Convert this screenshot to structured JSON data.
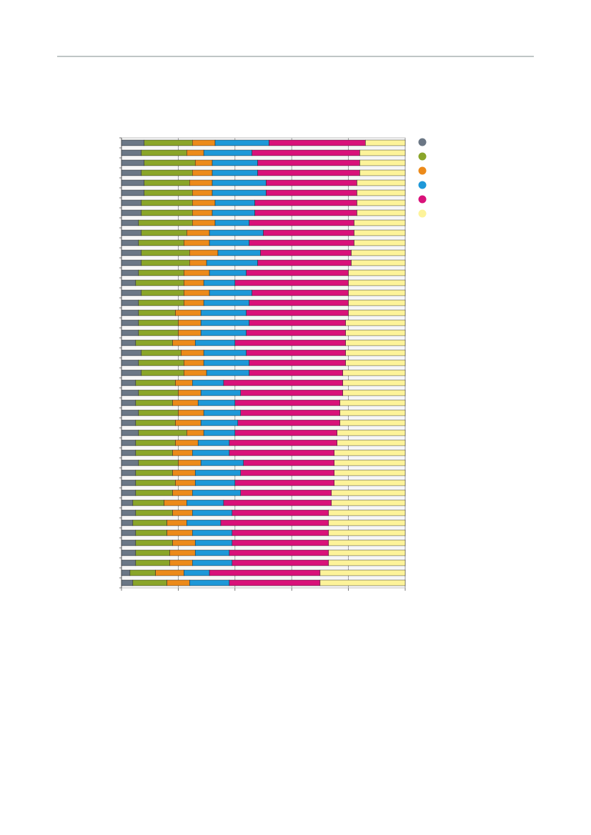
{
  "chart_data": {
    "type": "stacked-bar-horizontal",
    "categories": [
      null,
      null,
      null,
      null,
      null,
      null,
      null,
      null,
      null,
      null,
      null,
      null,
      null,
      null,
      null,
      null,
      null,
      null,
      null,
      null,
      null,
      null,
      null,
      null,
      null,
      null,
      null,
      null,
      null,
      null,
      null,
      null,
      null,
      null,
      null,
      null,
      null,
      null,
      null,
      null,
      null,
      null,
      null,
      null,
      null
    ],
    "xlim": [
      0,
      100
    ],
    "xticks": [
      0,
      20,
      40,
      60,
      80,
      100
    ],
    "grid": true,
    "series": [
      {
        "color": "#6b7785",
        "values": [
          8,
          7,
          8,
          7,
          8,
          8,
          7,
          7,
          6,
          7,
          6,
          7,
          7,
          6,
          5,
          7,
          6,
          6,
          6,
          6,
          5,
          7,
          6,
          7,
          5,
          6,
          5,
          6,
          5,
          6,
          5,
          5,
          6,
          5,
          5,
          5,
          4,
          5,
          4,
          5,
          5,
          5,
          5,
          3,
          4
        ]
      },
      {
        "color": "#8aa52a",
        "values": [
          17,
          16,
          18,
          18,
          16,
          17,
          18,
          18,
          19,
          16,
          16,
          17,
          17,
          16,
          17,
          15,
          16,
          13,
          14,
          14,
          13,
          14,
          16,
          15,
          14,
          14,
          13,
          14,
          14,
          17,
          14,
          13,
          14,
          13,
          14,
          13,
          11,
          13,
          12,
          11,
          13,
          12,
          12,
          9,
          12
        ]
      },
      {
        "color": "#ec8a1a",
        "values": [
          8,
          6,
          6,
          7,
          8,
          7,
          8,
          7,
          8,
          8,
          9,
          10,
          6,
          9,
          7,
          9,
          7,
          9,
          8,
          8,
          8,
          8,
          7,
          8,
          6,
          8,
          9,
          9,
          9,
          6,
          8,
          7,
          8,
          8,
          7,
          7,
          8,
          7,
          7,
          9,
          8,
          9,
          8,
          10,
          8
        ]
      },
      {
        "color": "#1e98d8",
        "values": [
          19,
          17,
          16,
          16,
          19,
          19,
          14,
          15,
          12,
          19,
          14,
          15,
          18,
          13,
          11,
          15,
          16,
          16,
          17,
          16,
          14,
          15,
          16,
          15,
          11,
          14,
          13,
          13,
          13,
          11,
          11,
          13,
          15,
          16,
          14,
          17,
          13,
          14,
          12,
          14,
          13,
          12,
          14,
          9,
          14
        ]
      },
      {
        "color": "#d9127a",
        "values": [
          34,
          38,
          36,
          36,
          32,
          32,
          36,
          36,
          37,
          32,
          37,
          32,
          33,
          36,
          40,
          34,
          35,
          36,
          34,
          35,
          39,
          35,
          34,
          33,
          42,
          36,
          37,
          35,
          36,
          36,
          38,
          37,
          32,
          33,
          35,
          32,
          38,
          34,
          38,
          34,
          34,
          35,
          34,
          39,
          32
        ]
      },
      {
        "color": "#fdf39a",
        "values": [
          14,
          16,
          16,
          16,
          17,
          17,
          17,
          17,
          18,
          18,
          18,
          19,
          19,
          20,
          20,
          20,
          20,
          20,
          21,
          21,
          21,
          21,
          21,
          22,
          22,
          22,
          23,
          23,
          23,
          24,
          24,
          25,
          25,
          25,
          25,
          26,
          26,
          27,
          27,
          27,
          27,
          27,
          27,
          30,
          30
        ]
      }
    ]
  }
}
